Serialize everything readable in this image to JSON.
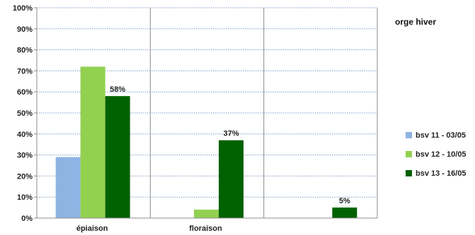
{
  "chart_data": {
    "type": "bar",
    "title": "orge hiver",
    "categories": [
      "épiaison",
      "floraison",
      ""
    ],
    "series": [
      {
        "name": "bsv 11 - 03/05",
        "values": [
          29,
          0,
          0
        ],
        "color": "#8EB4E3"
      },
      {
        "name": "bsv 12 - 10/05",
        "values": [
          72,
          4,
          0
        ],
        "color": "#92D050"
      },
      {
        "name": "bsv 13 - 16/05",
        "values": [
          58,
          37,
          5
        ],
        "color": "#006100"
      }
    ],
    "data_labels": [
      {
        "series": 2,
        "category": 0,
        "text": "58%"
      },
      {
        "series": 2,
        "category": 1,
        "text": "37%"
      },
      {
        "series": 2,
        "category": 2,
        "text": "5%"
      }
    ],
    "y_ticks": [
      "0%",
      "10%",
      "20%",
      "30%",
      "40%",
      "50%",
      "60%",
      "70%",
      "80%",
      "90%",
      "100%"
    ],
    "ylim": [
      0,
      100
    ],
    "grid": true,
    "legend": "right"
  }
}
